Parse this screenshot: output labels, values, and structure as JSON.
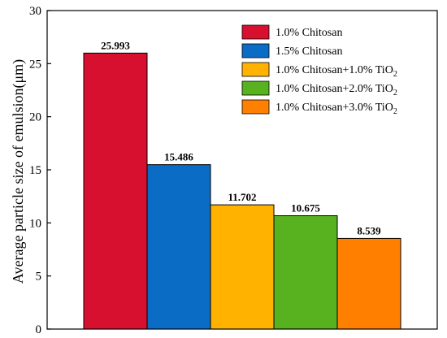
{
  "chart_data": {
    "type": "bar",
    "title": "",
    "xlabel": "",
    "ylabel": "Average particle size of emulsion(μm)",
    "ylim": [
      0,
      30
    ],
    "yticks": [
      0,
      5,
      10,
      15,
      20,
      25,
      30
    ],
    "grid": false,
    "legend_position": "top-right",
    "series": [
      {
        "name": "1.0% Chitosan",
        "value": 25.993,
        "label": "25.993",
        "color": "#d7102f",
        "legend_main": "1.0% Chitosan",
        "legend_sub": ""
      },
      {
        "name": "1.5% Chitosan",
        "value": 15.486,
        "label": "15.486",
        "color": "#0a6cc5",
        "legend_main": "1.5% Chitosan",
        "legend_sub": ""
      },
      {
        "name": "1.0% Chitosan+1.0% TiO2",
        "value": 11.702,
        "label": "11.702",
        "color": "#ffb300",
        "legend_main": "1.0% Chitosan+1.0% TiO",
        "legend_sub": "2"
      },
      {
        "name": "1.0% Chitosan+2.0% TiO2",
        "value": 10.675,
        "label": "10.675",
        "color": "#58b21f",
        "legend_main": "1.0% Chitosan+2.0% TiO",
        "legend_sub": "2"
      },
      {
        "name": "1.0% Chitosan+3.0% TiO2",
        "value": 8.539,
        "label": "8.539",
        "color": "#ff8000",
        "legend_main": "1.0% Chitosan+3.0% TiO",
        "legend_sub": "2"
      }
    ]
  }
}
